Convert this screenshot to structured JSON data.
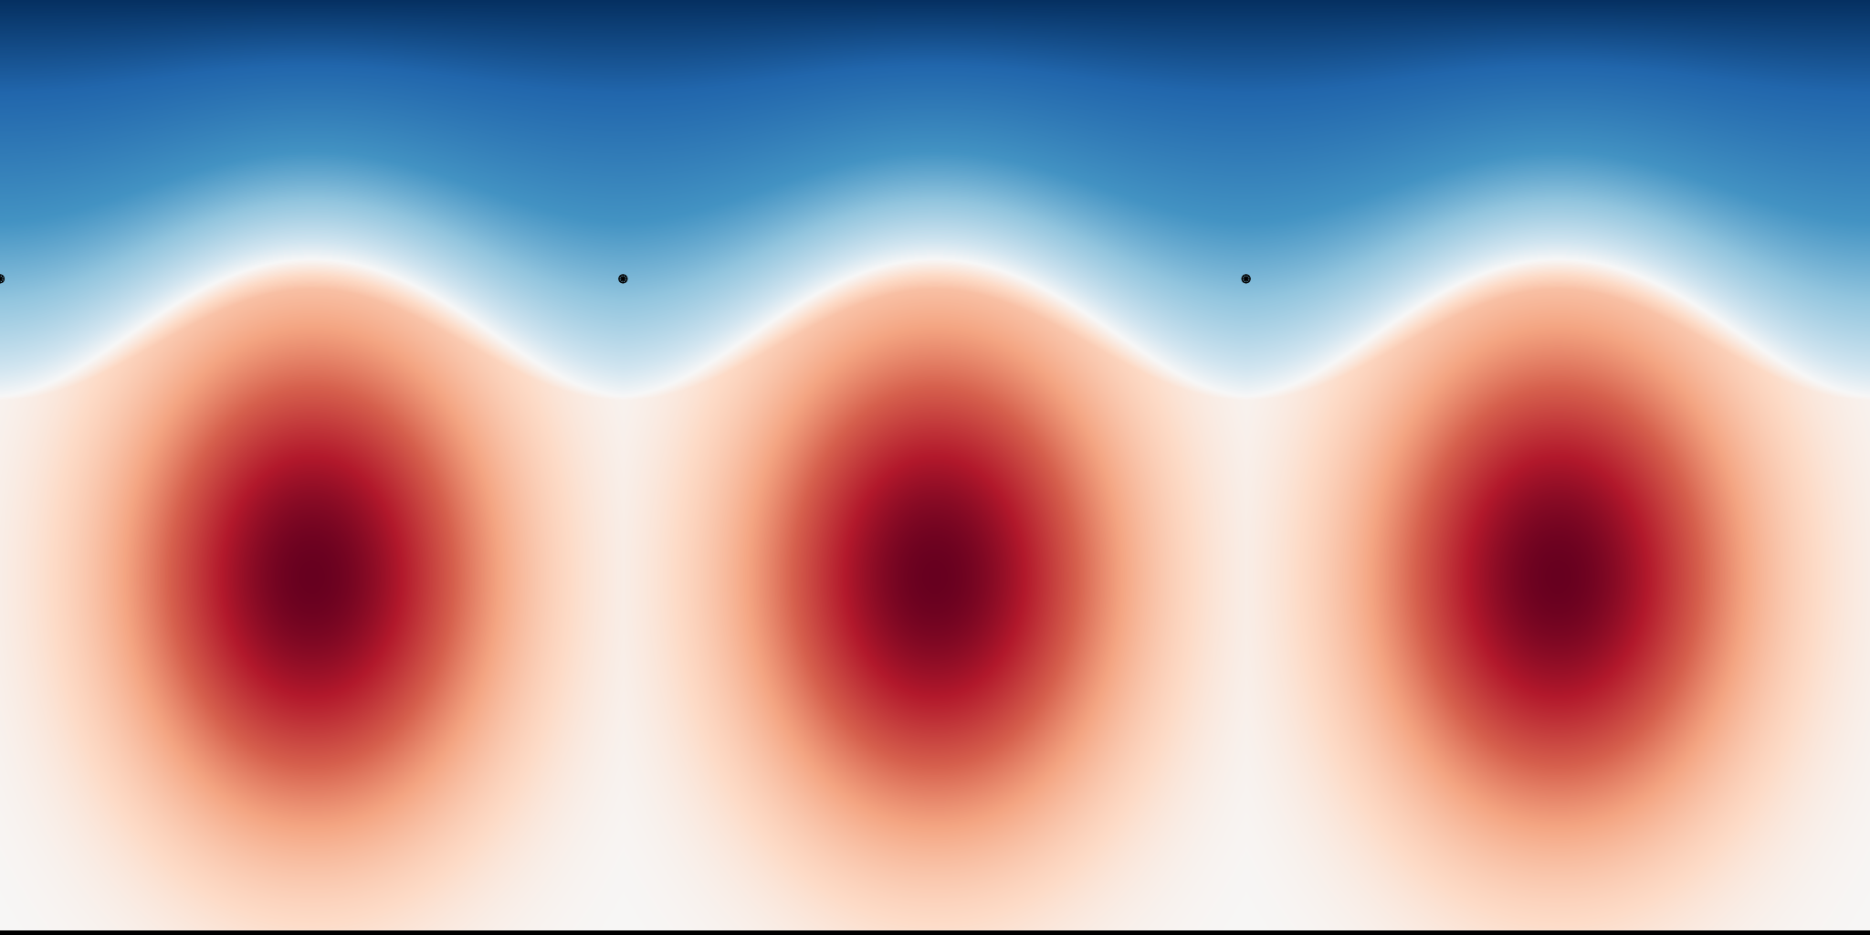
{
  "chart_data": {
    "type": "heatmap",
    "colormap": "RdBu_r",
    "colorscale": {
      "low": "#053061",
      "mid": "#f7f7f7",
      "high": "#67001f"
    },
    "value_range": [
      -1,
      1
    ],
    "x_range": [
      0,
      3
    ],
    "y_range": [
      0,
      1
    ],
    "axis_lines_visible": false,
    "tick_labels_visible": false,
    "grid": false,
    "legend": "none",
    "cells_along_x": 3,
    "features": [
      {
        "kind": "high",
        "x": 0.5,
        "y": 0.38,
        "value": 1.0
      },
      {
        "kind": "high",
        "x": 1.5,
        "y": 0.38,
        "value": 1.0
      },
      {
        "kind": "high",
        "x": 2.5,
        "y": 0.38,
        "value": 1.0
      },
      {
        "kind": "low",
        "edge": "top",
        "value": -1.0
      }
    ],
    "markers": [
      {
        "symbol": "asterisk",
        "x": 0.0,
        "y": 0.7
      },
      {
        "symbol": "asterisk",
        "x": 1.0,
        "y": 0.7
      },
      {
        "symbol": "asterisk",
        "x": 2.0,
        "y": 0.7
      }
    ]
  }
}
